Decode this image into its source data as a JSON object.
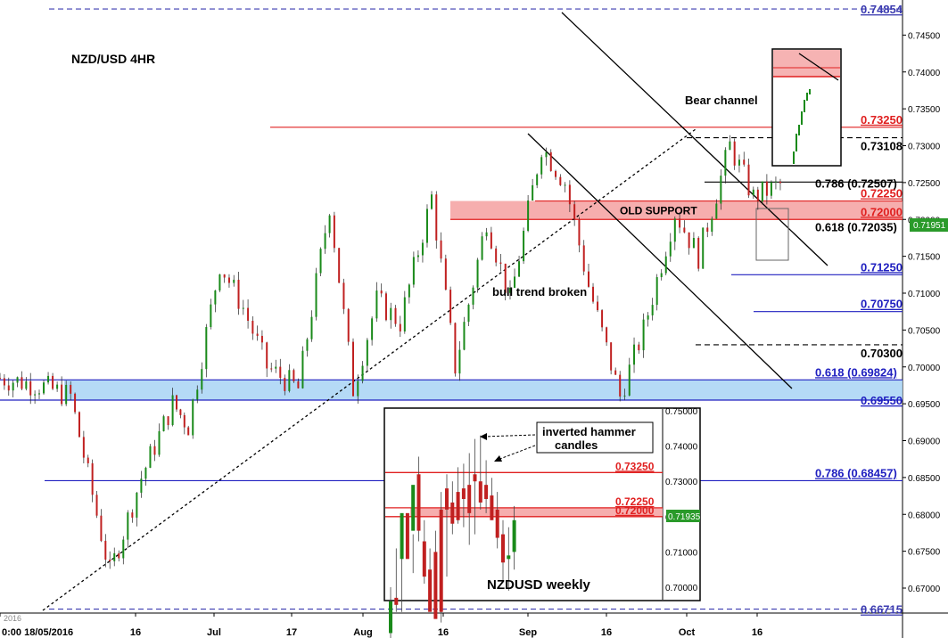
{
  "chart_data": {
    "type": "candlestick",
    "title": "NZD/USD 4HR",
    "ylim": [
      0.6665,
      0.7497
    ],
    "y_ticks": [
      "0.74500",
      "0.74000",
      "0.73500",
      "0.73000",
      "0.72500",
      "0.72000",
      "0.71500",
      "0.71000",
      "0.70500",
      "0.70000",
      "0.69500",
      "0.69000",
      "0.68500",
      "0.68000",
      "0.67500",
      "0.67000"
    ],
    "x_ticks": [
      "0:00 18/05/2016",
      "16",
      "Jul",
      "17",
      "Aug",
      "16",
      "Sep",
      "16",
      "Oct",
      "16"
    ],
    "year_label": "2016",
    "current_price": "0.71951",
    "levels": [
      {
        "value": 0.74854,
        "label": "0.74854",
        "style": "dashed",
        "color": "#3b3bb0"
      },
      {
        "value": 0.7325,
        "label": "0.73250",
        "style": "solid",
        "color": "#e02020"
      },
      {
        "value": 0.73108,
        "label": "0.73108",
        "style": "dashed",
        "color": "#000000"
      },
      {
        "value": 0.72507,
        "label": "0.786 (0.72507)",
        "style": "solid",
        "color": "#000000"
      },
      {
        "value": 0.7225,
        "label": "0.72250",
        "style": "solid",
        "color": "#e02020"
      },
      {
        "value": 0.72,
        "label": "0.72000",
        "style": "solid",
        "color": "#e02020"
      },
      {
        "value": 0.72035,
        "label": "0.618 (0.72035)",
        "style": "none",
        "color": "#000000"
      },
      {
        "value": 0.7125,
        "label": "0.71250",
        "style": "solid",
        "color": "#2020c0"
      },
      {
        "value": 0.7075,
        "label": "0.70750",
        "style": "solid",
        "color": "#2020c0"
      },
      {
        "value": 0.703,
        "label": "0.70300",
        "style": "dashed",
        "color": "#000000"
      },
      {
        "value": 0.69824,
        "label": "0.618 (0.69824)",
        "style": "solid",
        "color": "#2020c0"
      },
      {
        "value": 0.6955,
        "label": "0.69550",
        "style": "solid",
        "color": "#2020c0"
      },
      {
        "value": 0.68457,
        "label": "0.786 (0.68457)",
        "style": "solid",
        "color": "#2020c0"
      },
      {
        "value": 0.66715,
        "label": "0.66715",
        "style": "dashed",
        "color": "#3b3bb0"
      }
    ],
    "zones": [
      {
        "from": 0.72,
        "to": 0.7225,
        "label": "OLD SUPPORT",
        "color": "#f4a0a0"
      },
      {
        "from": 0.6955,
        "to": 0.69824,
        "label": "",
        "color": "#a8d4f4"
      }
    ],
    "annotations": [
      "Bear channel",
      "bull trend broken"
    ],
    "series_path": [
      [
        0.6985,
        0
      ],
      [
        0.6975,
        0.05
      ],
      [
        0.696,
        0.09
      ],
      [
        0.672,
        0.14
      ],
      [
        0.685,
        0.18
      ],
      [
        0.695,
        0.22
      ],
      [
        0.692,
        0.24
      ],
      [
        0.714,
        0.28
      ],
      [
        0.708,
        0.31
      ],
      [
        0.7,
        0.34
      ],
      [
        0.697,
        0.38
      ],
      [
        0.722,
        0.42
      ],
      [
        0.697,
        0.45
      ],
      [
        0.709,
        0.48
      ],
      [
        0.706,
        0.51
      ],
      [
        0.723,
        0.55
      ],
      [
        0.7,
        0.58
      ],
      [
        0.72,
        0.62
      ],
      [
        0.709,
        0.65
      ],
      [
        0.73,
        0.69
      ],
      [
        0.725,
        0.72
      ],
      [
        0.711,
        0.75
      ],
      [
        0.696,
        0.79
      ],
      [
        0.705,
        0.82
      ],
      [
        0.721,
        0.86
      ],
      [
        0.715,
        0.89
      ],
      [
        0.73,
        0.93
      ],
      [
        0.723,
        0.96
      ],
      [
        0.725,
        1
      ]
    ],
    "inset_daily_zoom": {
      "levels": [
        0.7225,
        0.72
      ],
      "zone_label": ""
    },
    "inset_weekly": {
      "title": "NZDUSD weekly",
      "annotation": "inverted hammer candles",
      "y_ticks": [
        "0.75000",
        "0.74000",
        "0.73000",
        "0.72000",
        "0.71000",
        "0.70000"
      ],
      "levels": [
        {
          "value": 0.7325,
          "label": "0.73250"
        },
        {
          "value": 0.7225,
          "label": "0.72250"
        },
        {
          "value": 0.72,
          "label": "0.72000"
        }
      ],
      "current_price": "0.71935",
      "candles": [
        [
          0.687,
          0.687,
          0.696,
          0.697
        ],
        [
          0.696,
          0.697,
          0.695,
          0.708
        ],
        [
          0.696,
          0.708,
          0.721,
          0.714
        ],
        [
          0.713,
          0.721,
          0.708,
          0.715
        ],
        [
          0.707,
          0.716,
          0.729,
          0.712
        ],
        [
          0.716,
          0.732,
          0.716,
          0.734
        ],
        [
          0.704,
          0.713,
          0.703,
          0.716
        ],
        [
          0.697,
          0.705,
          0.693,
          0.708
        ],
        [
          0.696,
          0.71,
          0.691,
          0.713
        ],
        [
          0.693,
          0.722,
          0.693,
          0.724
        ],
        [
          0.706,
          0.728,
          0.722,
          0.729
        ],
        [
          0.718,
          0.724,
          0.718,
          0.727
        ],
        [
          0.721,
          0.727,
          0.719,
          0.731
        ],
        [
          0.72,
          0.728,
          0.725,
          0.732
        ],
        [
          0.715,
          0.729,
          0.721,
          0.735
        ],
        [
          0.718,
          0.732,
          0.73,
          0.739
        ],
        [
          0.725,
          0.73,
          0.724,
          0.74
        ],
        [
          0.724,
          0.729,
          0.725,
          0.733
        ],
        [
          0.722,
          0.726,
          0.719,
          0.728
        ],
        [
          0.714,
          0.722,
          0.714,
          0.724
        ],
        [
          0.705,
          0.715,
          0.707,
          0.716
        ],
        [
          0.702,
          0.708,
          0.709,
          0.714
        ],
        [
          0.708,
          0.71,
          0.719,
          0.72
        ]
      ]
    }
  }
}
